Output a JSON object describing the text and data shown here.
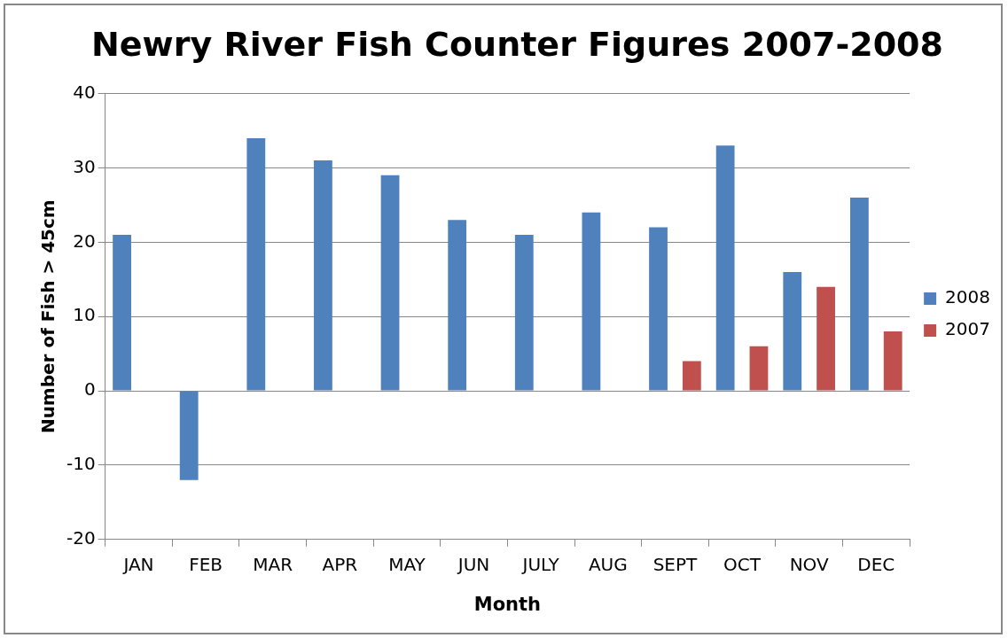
{
  "chart_data": {
    "type": "bar",
    "title": "Newry River Fish Counter Figures 2007-2008",
    "xlabel": "Month",
    "ylabel": "Number of Fish > 45cm",
    "categories": [
      "JAN",
      "FEB",
      "MAR",
      "APR",
      "MAY",
      "JUN",
      "JULY",
      "AUG",
      "SEPT",
      "OCT",
      "NOV",
      "DEC"
    ],
    "series": [
      {
        "name": "2008",
        "color": "#4f81bd",
        "values": [
          21,
          -12,
          34,
          31,
          29,
          23,
          21,
          24,
          22,
          33,
          16,
          26
        ]
      },
      {
        "name": "2007",
        "color": "#c0504d",
        "values": [
          null,
          null,
          null,
          null,
          null,
          null,
          null,
          null,
          4,
          6,
          14,
          8
        ]
      }
    ],
    "ylim": [
      -20,
      40
    ],
    "yticks": [
      -20,
      -10,
      0,
      10,
      20,
      30,
      40
    ],
    "grid": "y",
    "legend": "right"
  }
}
